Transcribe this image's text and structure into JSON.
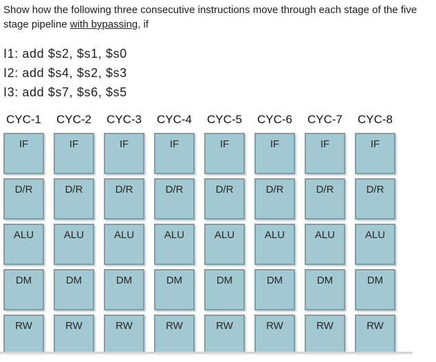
{
  "question": {
    "text_before": "Show how the following three consecutive instructions move through each stage of the five stage pipeline ",
    "underlined": "with bypassing",
    "text_after": ", if"
  },
  "instructions": [
    "I1: add $s2, $s1, $s0",
    "I2: add $s4, $s2, $s3",
    "I3: add $s7, $s6, $s5"
  ],
  "pipeline": {
    "cycles": [
      "CYC-1",
      "CYC-2",
      "CYC-3",
      "CYC-4",
      "CYC-5",
      "CYC-6",
      "CYC-7",
      "CYC-8"
    ],
    "stages": [
      "IF",
      "D/R",
      "ALU",
      "DM",
      "RW"
    ]
  },
  "colors": {
    "box_fill": "#a2c9d1",
    "box_border": "#7e9da4",
    "divider": "#d6d6d6",
    "text": "#1a1a1a"
  }
}
